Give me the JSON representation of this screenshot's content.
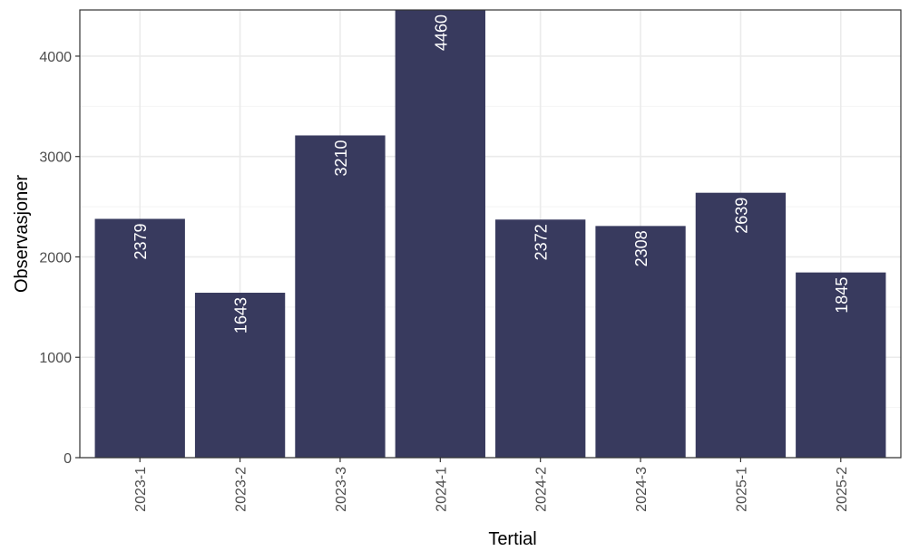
{
  "chart_data": {
    "type": "bar",
    "categories": [
      "2023-1",
      "2023-2",
      "2023-3",
      "2024-1",
      "2024-2",
      "2024-3",
      "2025-1",
      "2025-2"
    ],
    "values": [
      2379,
      1643,
      3210,
      4460,
      2372,
      2308,
      2639,
      1845
    ],
    "data_labels": [
      "2379",
      "1643",
      "3210",
      "4460",
      "2372",
      "2308",
      "2639",
      "1845"
    ],
    "title": "",
    "xlabel": "Tertial",
    "ylabel": "Observasjoner",
    "ylim": [
      0,
      4460
    ],
    "yticks": [
      0,
      1000,
      2000,
      3000,
      4000
    ],
    "grid": true,
    "legend": "none",
    "x_tick_rotation": "vertical",
    "data_label_rotation": "vertical",
    "colors": {
      "bar": "#383A5E",
      "grid_major": "#EBEBEB",
      "grid_minor": "#F4F4F4",
      "panel_border": "#333333",
      "bar_label": "#FFFFFF"
    }
  }
}
